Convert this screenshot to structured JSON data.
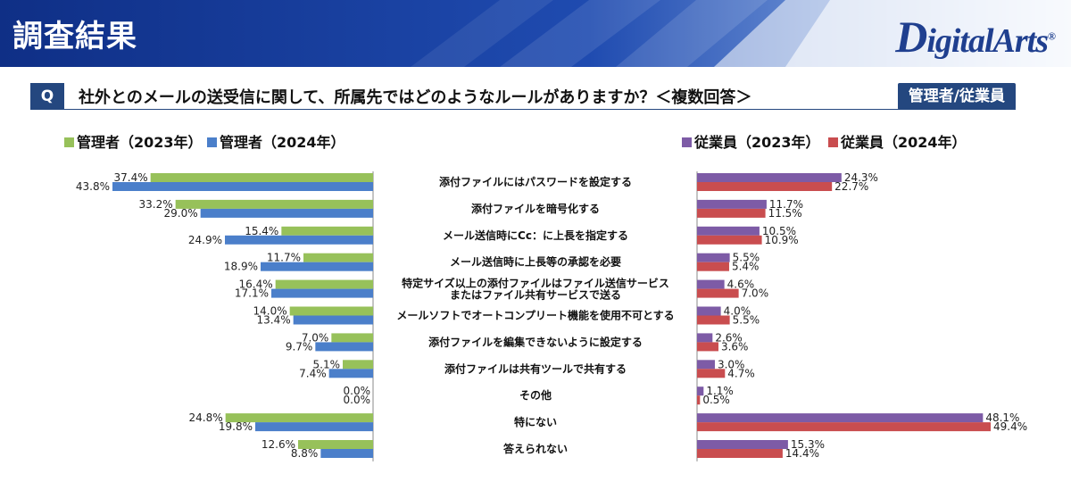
{
  "header": {
    "title": "調査結果",
    "logo_letter": "D",
    "logo_rest": "igitalArts",
    "logo_mark": "®"
  },
  "question": {
    "badge": "Q",
    "text": "社外とのメールの送受信に関して、所属先ではどのようなルールがありますか？＜複数回答＞",
    "tag": "管理者/従業員"
  },
  "colors": {
    "header_bg": "#1a3a8f",
    "accent": "#24477f",
    "admin_2023": "#97c15a",
    "admin_2024": "#4b7fca",
    "staff_2023": "#7d5ba6",
    "staff_2024": "#c94d4f"
  },
  "chart_data": {
    "type": "bar",
    "orientation": "horizontal",
    "categories": [
      "添付ファイルにはパスワードを設定する",
      "添付ファイルを暗号化する",
      "メール送信時にCc：に上長を指定する",
      "メール送信時に上長等の承認を必要",
      "特定サイズ以上の添付ファイルはファイル送信サービス\nまたはファイル共有サービスで送る",
      "メールソフトでオートコンプリート機能を使用不可とする",
      "添付ファイルを編集できないように設定する",
      "添付ファイルは共有ツールで共有する",
      "その他",
      "特にない",
      "答えられない"
    ],
    "admin": {
      "series": [
        {
          "name": "管理者（2023年）",
          "values": [
            37.4,
            33.2,
            15.4,
            11.7,
            16.4,
            14.0,
            7.0,
            5.1,
            0.0,
            24.8,
            12.6
          ]
        },
        {
          "name": "管理者（2024年）",
          "values": [
            43.8,
            29.0,
            24.9,
            18.9,
            17.1,
            13.4,
            9.7,
            7.4,
            0.0,
            19.8,
            8.8
          ]
        }
      ]
    },
    "staff": {
      "series": [
        {
          "name": "従業員（2023年）",
          "values": [
            24.3,
            11.7,
            10.5,
            5.5,
            4.6,
            4.0,
            2.6,
            3.0,
            1.1,
            48.1,
            15.3
          ]
        },
        {
          "name": "従業員（2024年）",
          "values": [
            22.7,
            11.5,
            10.9,
            5.4,
            7.0,
            5.5,
            3.6,
            4.7,
            0.5,
            49.4,
            14.4
          ]
        }
      ]
    },
    "value_suffix": "%",
    "xlim": [
      0,
      50
    ],
    "legend_position": "top",
    "grid": false
  }
}
